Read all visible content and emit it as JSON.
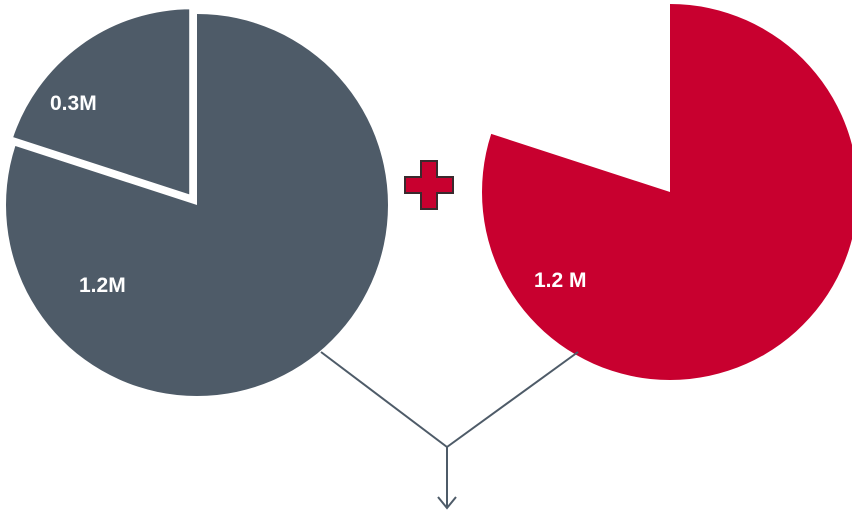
{
  "chart_data": [
    {
      "type": "pie",
      "slices": [
        {
          "label": "0.3M",
          "value": 0.3,
          "color": "#4e5b68",
          "exploded": true
        },
        {
          "label": "1.2M",
          "value": 1.2,
          "color": "#4e5b68",
          "exploded": false
        }
      ]
    },
    {
      "type": "pie",
      "slices": [
        {
          "label": "",
          "value": 0.3,
          "color": "#ffffff",
          "hidden": true
        },
        {
          "label": "1.2 M",
          "value": 1.2,
          "color": "#c8002f",
          "exploded": false
        }
      ]
    }
  ],
  "plus_sign": {
    "fill": "#c8002f",
    "stroke": "#3a2a2e"
  },
  "connector": {
    "color": "#4e5b68"
  }
}
